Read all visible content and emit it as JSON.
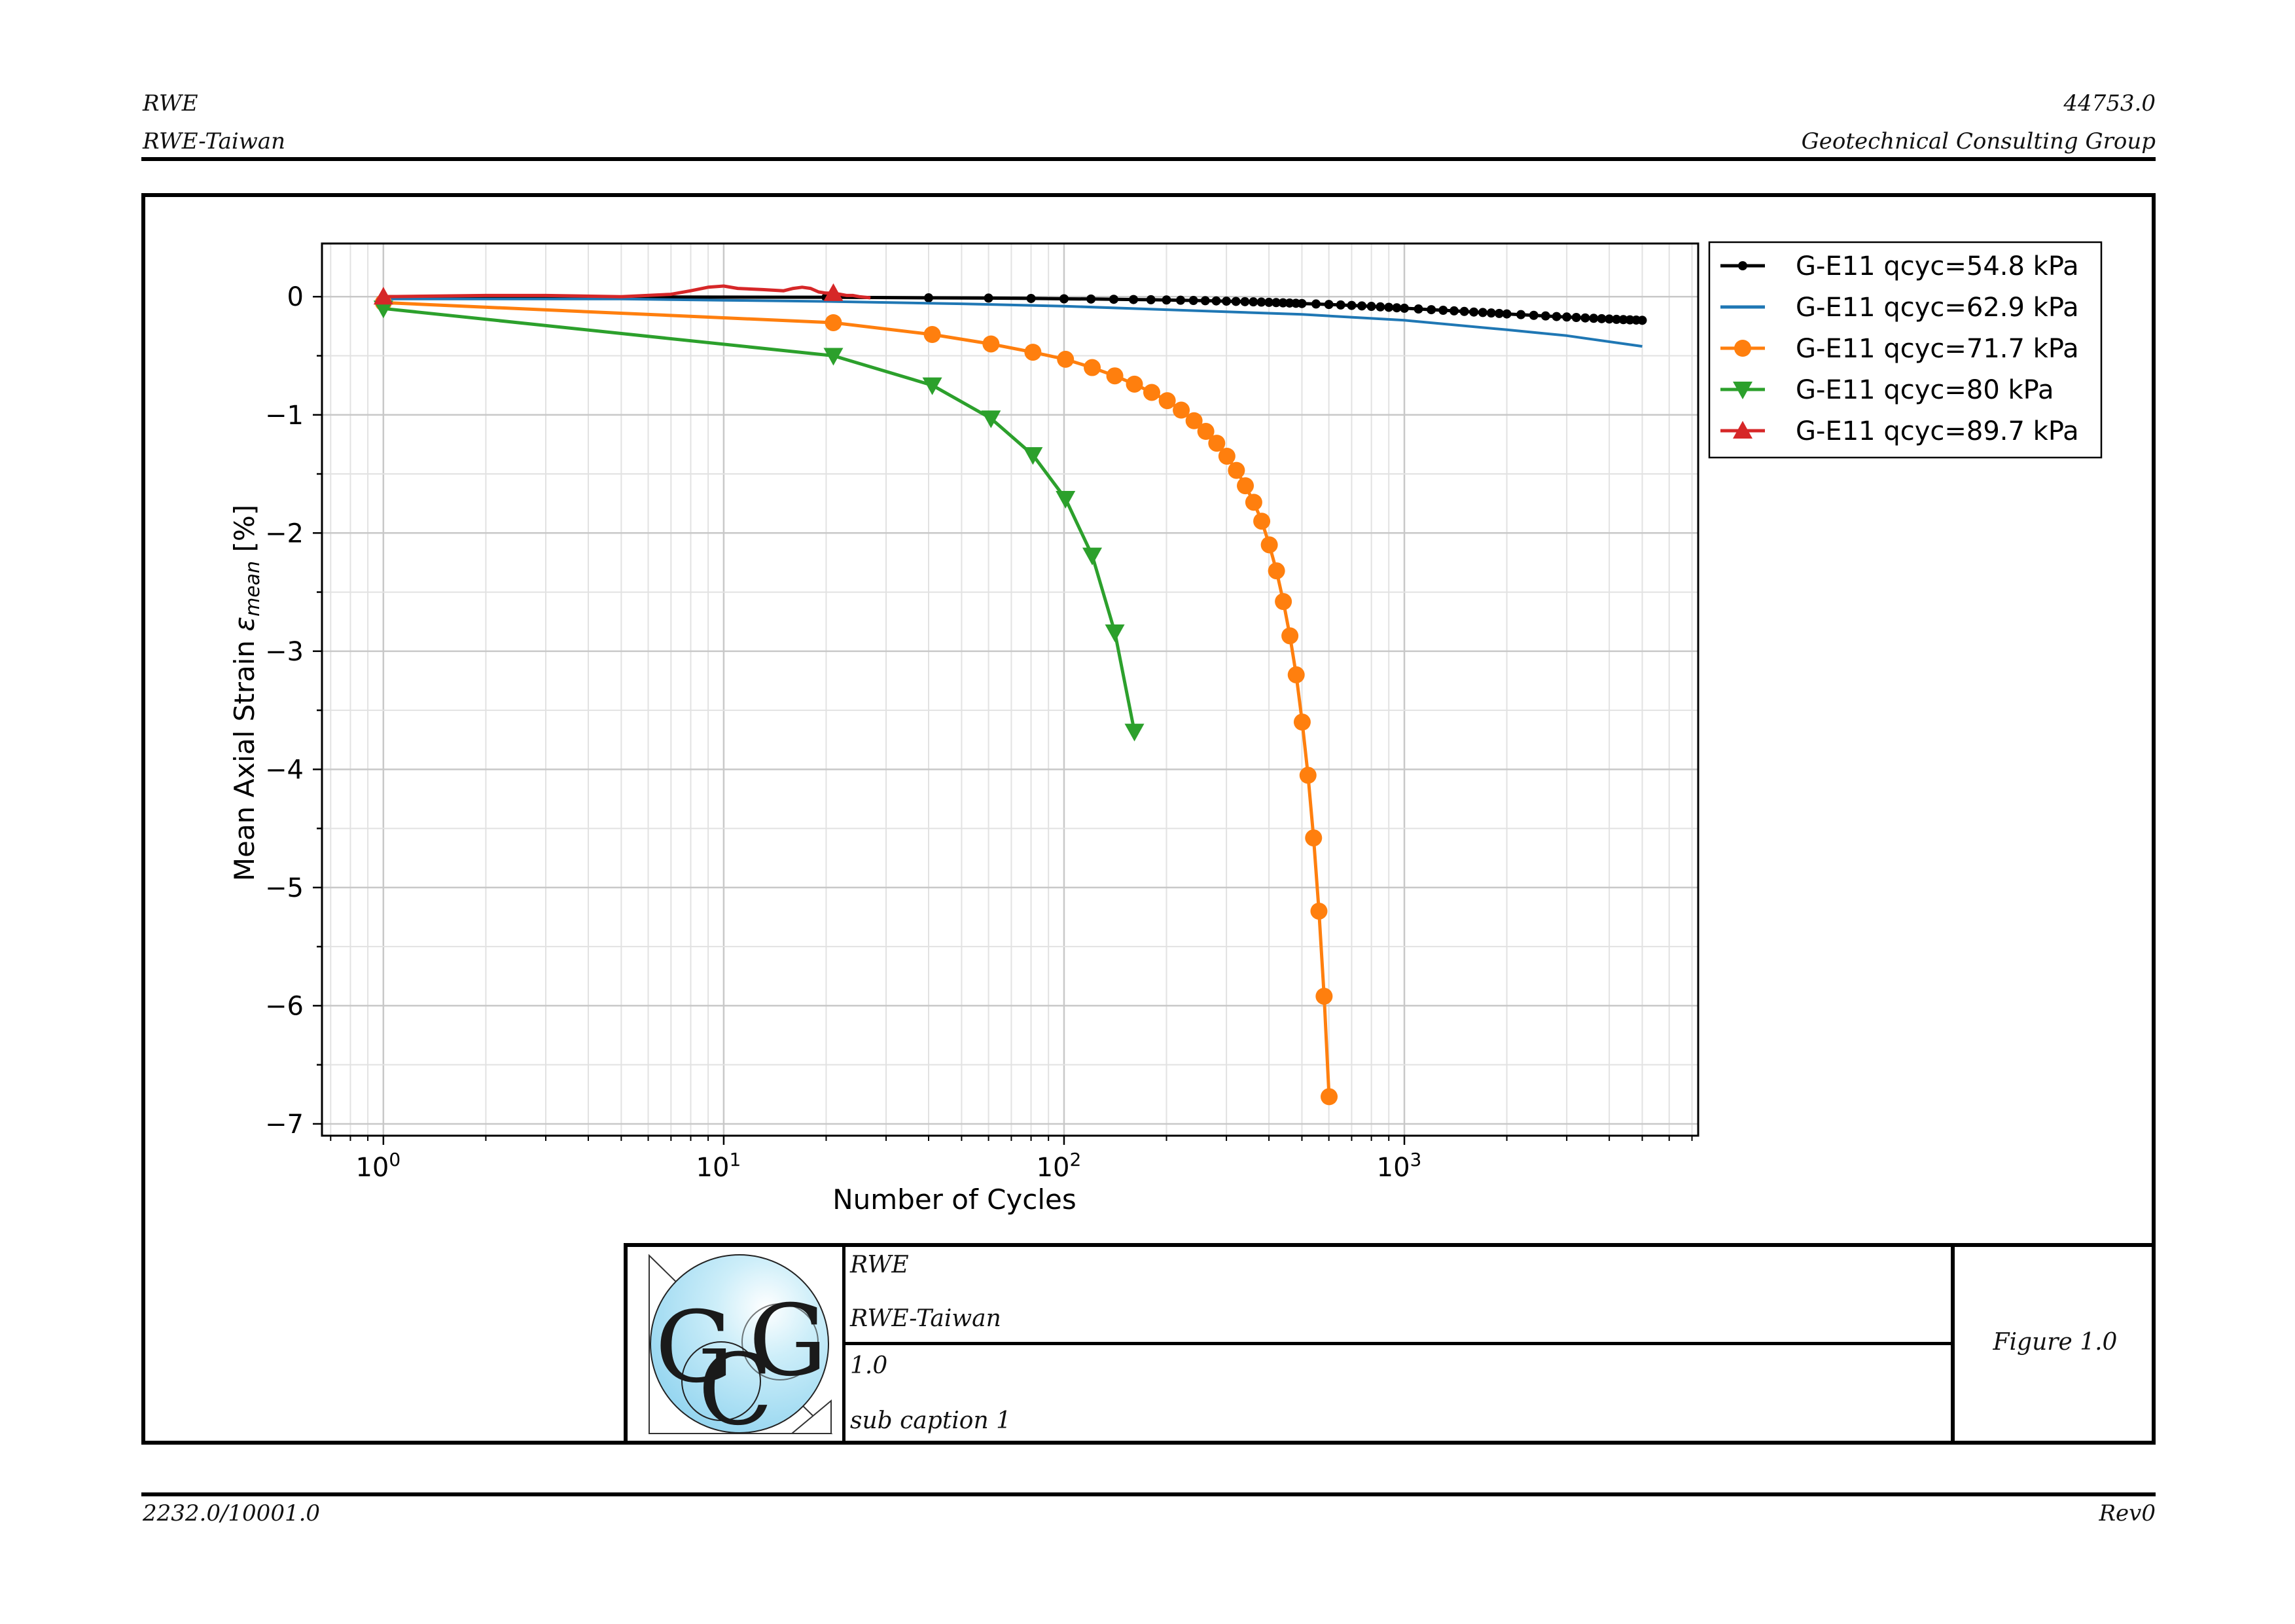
{
  "header": {
    "left_top": "RWE",
    "left_bottom": "RWE-Taiwan",
    "right_top": "44753.0",
    "right_bottom": "Geotechnical Consulting Group"
  },
  "footer": {
    "left": "2232.0/10001.0",
    "right": "Rev0"
  },
  "title_block": {
    "client": "RWE",
    "project": "RWE-Taiwan",
    "number": "1.0",
    "caption": "sub caption 1",
    "figure": "Figure 1.0",
    "logo_text": "GCG",
    "logo_color": "#a9ddf2"
  },
  "chart_data": {
    "type": "line",
    "xscale": "log",
    "xlabel": "Number of Cycles",
    "ylabel_main": "Mean Axial Strain ",
    "ylabel_symbol": "ε",
    "ylabel_subscript": "mean",
    "ylabel_unit": " [%]",
    "xlim": [
      0.66,
      7300
    ],
    "ylim": [
      -7.1,
      0.45
    ],
    "grid": true,
    "legend_position": "outside-right-top",
    "x_ticks": [
      {
        "base": "10",
        "exp": "0"
      },
      {
        "base": "10",
        "exp": "1"
      },
      {
        "base": "10",
        "exp": "2"
      },
      {
        "base": "10",
        "exp": "3"
      }
    ],
    "y_ticks": [
      "0",
      "−1",
      "−2",
      "−3",
      "−4",
      "−5",
      "−6",
      "−7"
    ],
    "series": [
      {
        "name": "G-E11 qcyc=54.8 kPa",
        "color": "#000000",
        "marker": "dot",
        "x": [
          1,
          20,
          40,
          60,
          80,
          100,
          120,
          140,
          160,
          180,
          200,
          220,
          240,
          260,
          280,
          300,
          320,
          340,
          360,
          380,
          400,
          420,
          440,
          460,
          480,
          500,
          550,
          600,
          650,
          700,
          750,
          800,
          850,
          900,
          950,
          1000,
          1100,
          1200,
          1300,
          1400,
          1500,
          1600,
          1700,
          1800,
          1900,
          2000,
          2200,
          2400,
          2600,
          2800,
          3000,
          3200,
          3400,
          3600,
          3800,
          4000,
          4200,
          4400,
          4600,
          4800,
          5000
        ],
        "y": [
          0.0,
          -0.005,
          -0.01,
          -0.012,
          -0.015,
          -0.018,
          -0.02,
          -0.022,
          -0.024,
          -0.026,
          -0.028,
          -0.03,
          -0.032,
          -0.034,
          -0.036,
          -0.038,
          -0.04,
          -0.042,
          -0.044,
          -0.046,
          -0.048,
          -0.05,
          -0.052,
          -0.054,
          -0.056,
          -0.058,
          -0.062,
          -0.066,
          -0.07,
          -0.074,
          -0.078,
          -0.082,
          -0.086,
          -0.09,
          -0.094,
          -0.098,
          -0.104,
          -0.11,
          -0.115,
          -0.12,
          -0.125,
          -0.13,
          -0.134,
          -0.138,
          -0.142,
          -0.146,
          -0.152,
          -0.158,
          -0.163,
          -0.168,
          -0.172,
          -0.176,
          -0.18,
          -0.183,
          -0.186,
          -0.189,
          -0.192,
          -0.194,
          -0.196,
          -0.198,
          -0.2
        ]
      },
      {
        "name": "G-E11 qcyc=62.9 kPa",
        "color": "#1f77b4",
        "marker": "none",
        "x": [
          1,
          2,
          5,
          10,
          20,
          50,
          100,
          200,
          500,
          1000,
          2000,
          3000,
          5000
        ],
        "y": [
          -0.02,
          -0.02,
          -0.02,
          -0.03,
          -0.04,
          -0.06,
          -0.08,
          -0.11,
          -0.15,
          -0.2,
          -0.28,
          -0.33,
          -0.42
        ]
      },
      {
        "name": "G-E11 qcyc=71.7 kPa",
        "color": "#ff7f0e",
        "marker": "circle",
        "x": [
          1,
          21,
          41,
          61,
          81,
          101,
          121,
          141,
          161,
          181,
          201,
          221,
          241,
          261,
          281,
          301,
          321,
          341,
          361,
          381,
          401,
          421,
          441,
          461,
          481,
          501,
          521,
          541,
          561,
          581,
          601
        ],
        "y": [
          -0.05,
          -0.22,
          -0.32,
          -0.4,
          -0.47,
          -0.53,
          -0.6,
          -0.67,
          -0.74,
          -0.81,
          -0.88,
          -0.96,
          -1.05,
          -1.14,
          -1.24,
          -1.35,
          -1.47,
          -1.6,
          -1.74,
          -1.9,
          -2.1,
          -2.32,
          -2.58,
          -2.87,
          -3.2,
          -3.6,
          -4.05,
          -4.58,
          -5.2,
          -5.92,
          -6.77
        ]
      },
      {
        "name": "G-E11 qcyc=80 kPa",
        "color": "#2ca02c",
        "marker": "triangle-down",
        "x": [
          1,
          21,
          41,
          61,
          81,
          101,
          121,
          141,
          161
        ],
        "y": [
          -0.1,
          -0.5,
          -0.75,
          -1.03,
          -1.34,
          -1.71,
          -2.19,
          -2.84,
          -3.68
        ]
      },
      {
        "name": "G-E11 qcyc=89.7 kPa",
        "color": "#d62728",
        "marker": "triangle-up",
        "marker_at": [
          0,
          1
        ],
        "x": [
          1,
          21,
          2,
          3,
          5,
          7,
          8,
          9,
          10,
          11,
          13,
          15,
          16,
          17,
          18,
          19,
          20,
          21,
          22,
          23,
          24,
          25,
          27
        ],
        "y": [
          0.0,
          0.03,
          0.01,
          0.01,
          0.0,
          0.02,
          0.05,
          0.08,
          0.09,
          0.07,
          0.06,
          0.05,
          0.07,
          0.08,
          0.07,
          0.04,
          0.03,
          0.03,
          0.02,
          0.01,
          0.01,
          0.0,
          -0.01
        ]
      }
    ]
  }
}
